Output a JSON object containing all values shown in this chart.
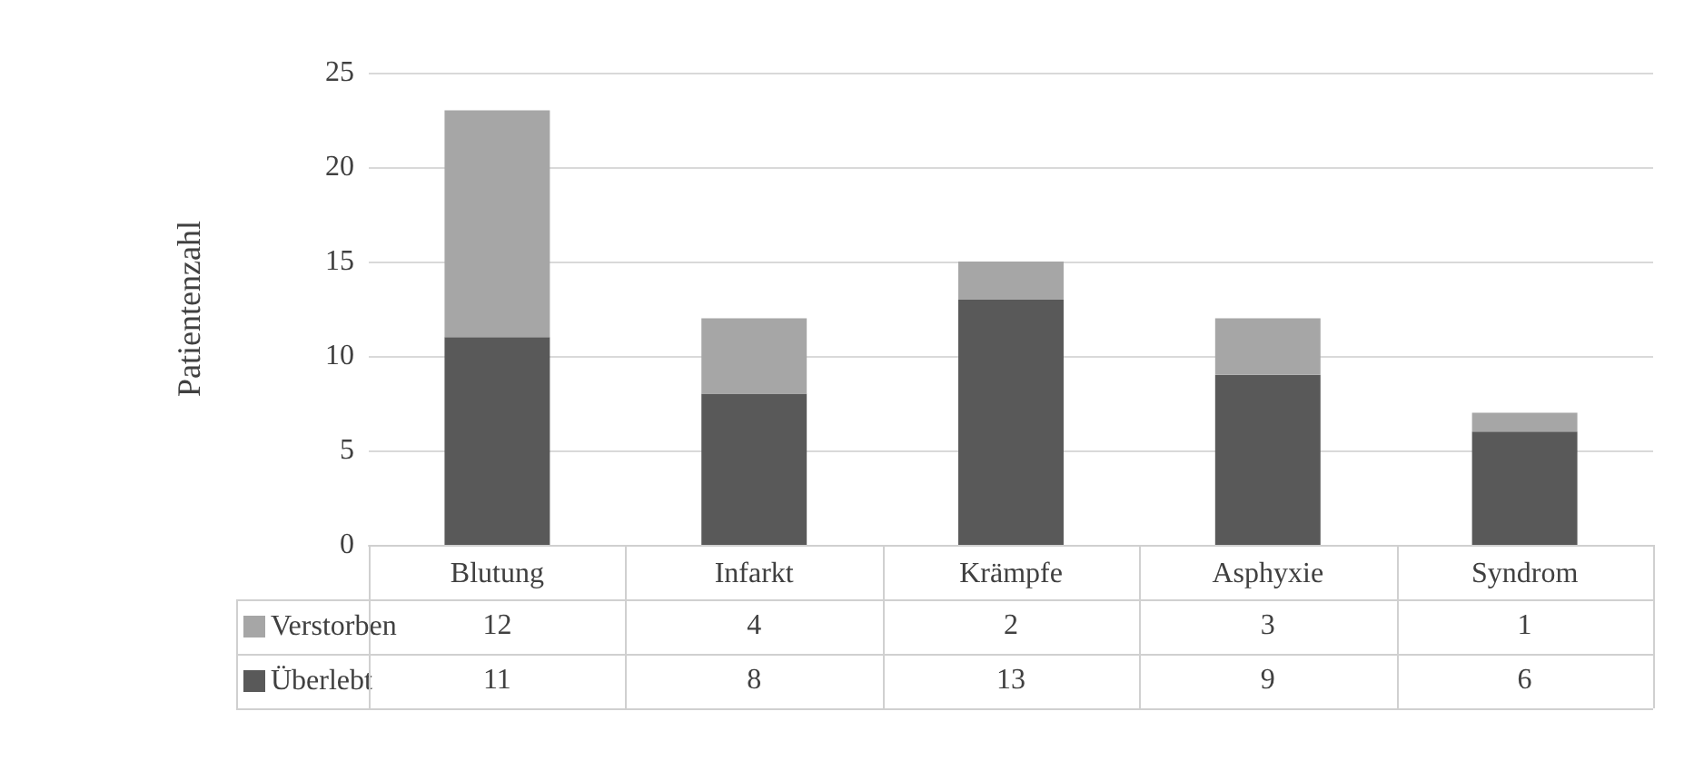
{
  "chart_data": {
    "type": "bar",
    "ylabel": "Patientenzahl",
    "categories": [
      "Blutung",
      "Infarkt",
      "Krämpfe",
      "Asphyxie",
      "Syndrom"
    ],
    "series": [
      {
        "name": "Überlebt",
        "color": "#595959",
        "values": [
          11,
          8,
          13,
          9,
          6
        ]
      },
      {
        "name": "Verstorben",
        "color": "#a6a6a6",
        "values": [
          12,
          4,
          2,
          3,
          1
        ]
      }
    ],
    "stacked": true,
    "ylim": [
      0,
      25
    ],
    "yticks": [
      0,
      5,
      10,
      15,
      20,
      25
    ],
    "grid": "y",
    "legend": "bottom left",
    "data_labels": true
  }
}
